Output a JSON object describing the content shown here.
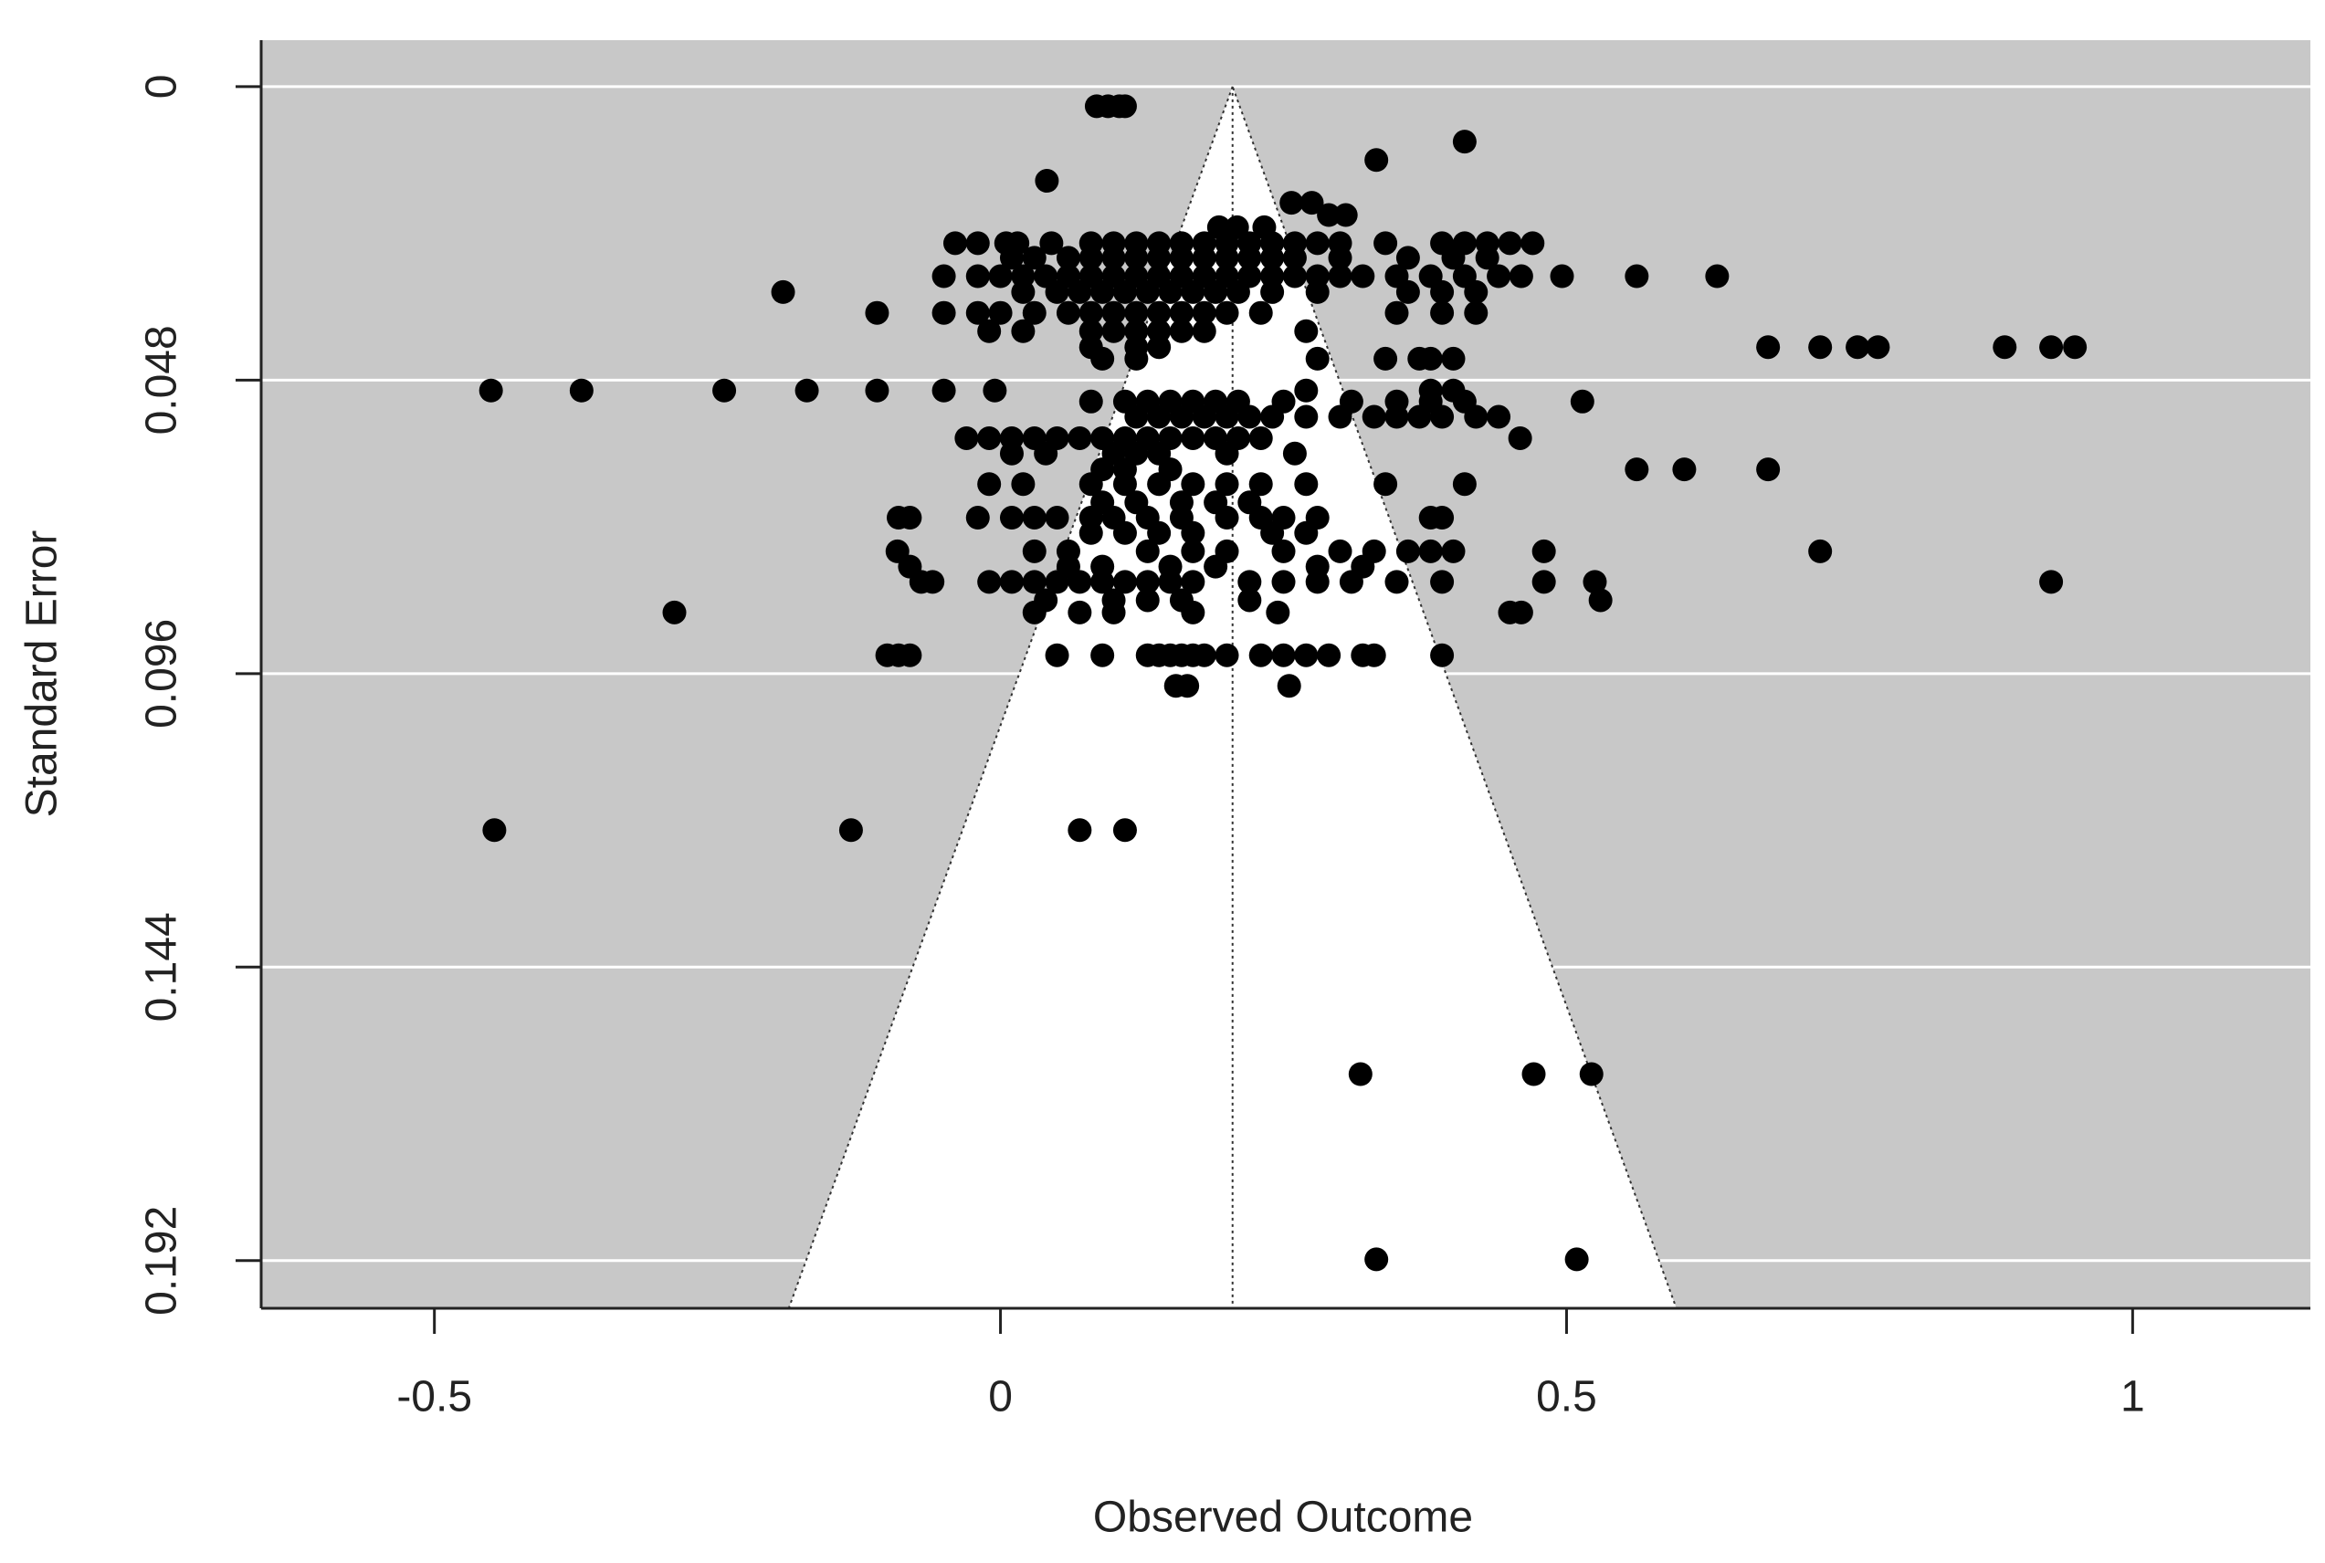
{
  "chart_data": {
    "type": "funnel-scatter",
    "xlabel": "Observed Outcome",
    "ylabel": "Standard Error",
    "xlim": [
      -0.653,
      1.157
    ],
    "ylim": [
      0.1998,
      -0.0076
    ],
    "xticks": [
      -0.5,
      0,
      0.5,
      1
    ],
    "yticks": [
      0,
      0.048,
      0.096,
      0.144,
      0.192
    ],
    "grid": true,
    "color": "#000000",
    "background": "#c8c8c8",
    "funnel_estimate": 0.205,
    "funnel_lower_limit": -0.187,
    "funnel_upper_limit": 0.597,
    "x": [
      0.085,
      0.095,
      0.105,
      0.11,
      0.41,
      0.332,
      0.041,
      0.257,
      0.275,
      0.29,
      0.305,
      0.193,
      0.209,
      0.233,
      -0.04,
      -0.02,
      0.005,
      0.015,
      0.045,
      0.08,
      0.1,
      0.12,
      0.14,
      0.16,
      0.18,
      0.2,
      0.22,
      0.24,
      0.26,
      0.28,
      0.3,
      0.34,
      0.39,
      0.41,
      0.43,
      0.45,
      0.47,
      0.01,
      0.03,
      0.06,
      0.08,
      0.1,
      0.12,
      0.14,
      0.16,
      0.18,
      0.2,
      0.22,
      0.24,
      0.26,
      0.3,
      0.36,
      0.4,
      0.43,
      -0.05,
      -0.02,
      0,
      0.02,
      0.04,
      0.06,
      0.08,
      0.1,
      0.12,
      0.14,
      0.16,
      0.18,
      0.2,
      0.22,
      0.24,
      0.26,
      0.28,
      0.3,
      0.32,
      0.35,
      0.38,
      0.41,
      0.44,
      0.46,
      0.496,
      0.562,
      0.633,
      -0.192,
      0.02,
      0.05,
      0.07,
      0.09,
      0.11,
      0.13,
      0.15,
      0.17,
      0.19,
      0.21,
      0.24,
      0.28,
      0.36,
      0.39,
      0.42,
      -0.109,
      -0.05,
      -0.02,
      0,
      0.03,
      0.06,
      0.08,
      0.1,
      0.12,
      0.14,
      0.16,
      0.18,
      0.2,
      0.23,
      0.35,
      0.39,
      0.42,
      -0.01,
      0.02,
      0.08,
      0.1,
      0.12,
      0.14,
      0.16,
      0.18,
      0.27,
      0.08,
      0.12,
      0.14,
      0.678,
      0.724,
      0.757,
      0.775,
      0.887,
      0.928,
      0.949,
      0.09,
      0.12,
      0.28,
      0.34,
      0.37,
      0.38,
      0.4,
      -0.45,
      -0.37,
      -0.244,
      -0.171,
      -0.109,
      -0.05,
      -0.005,
      0.27,
      0.38,
      0.4,
      0.08,
      0.11,
      0.13,
      0.15,
      0.17,
      0.19,
      0.21,
      0.25,
      0.31,
      0.35,
      0.38,
      0.41,
      0.514,
      0.12,
      0.14,
      0.16,
      0.18,
      0.2,
      0.22,
      0.24,
      0.27,
      0.3,
      0.33,
      0.35,
      0.37,
      0.39,
      0.42,
      0.44,
      -0.03,
      -0.01,
      0.01,
      0.03,
      0.05,
      0.07,
      0.09,
      0.11,
      0.13,
      0.15,
      0.17,
      0.19,
      0.21,
      0.23,
      0.459,
      0.01,
      0.04,
      0.1,
      0.12,
      0.14,
      0.2,
      0.26,
      0.09,
      0.11,
      0.15,
      0.562,
      0.604,
      0.678,
      -0.01,
      0.02,
      0.08,
      0.11,
      0.14,
      0.17,
      0.2,
      0.23,
      0.27,
      0.34,
      0.41,
      0.09,
      0.12,
      0.16,
      0.19,
      0.22,
      -0.09,
      -0.08,
      -0.02,
      0.01,
      0.03,
      0.05,
      0.08,
      0.1,
      0.13,
      0.16,
      0.2,
      0.23,
      0.25,
      0.28,
      0.38,
      0.39,
      0.08,
      0.11,
      0.14,
      0.17,
      0.24,
      0.27,
      -0.091,
      0.03,
      0.06,
      0.13,
      0.17,
      0.2,
      0.25,
      0.3,
      0.33,
      0.36,
      0.38,
      0.4,
      0.48,
      0.724,
      -0.08,
      0.06,
      0.09,
      0.15,
      0.19,
      0.28,
      0.32,
      -0.07,
      -0.06,
      -0.01,
      0.01,
      0.03,
      0.05,
      0.07,
      0.09,
      0.11,
      0.13,
      0.15,
      0.17,
      0.22,
      0.25,
      0.28,
      0.31,
      0.35,
      0.39,
      0.48,
      0.525,
      0.928,
      0.04,
      0.1,
      0.13,
      0.16,
      0.22,
      0.53,
      -0.288,
      0.03,
      0.07,
      0.1,
      0.17,
      0.245,
      0.45,
      0.46,
      -0.1,
      -0.09,
      -0.08,
      0.05,
      0.09,
      0.13,
      0.14,
      0.15,
      0.16,
      0.17,
      0.18,
      0.2,
      0.23,
      0.25,
      0.27,
      0.29,
      0.32,
      0.33,
      0.39,
      0.155,
      0.165,
      0.255,
      -0.447,
      -0.132,
      0.07,
      0.11,
      0.318,
      0.471,
      0.522,
      0.332,
      0.509
    ],
    "values": [
      0.0032,
      0.0032,
      0.0032,
      0.0032,
      0.009,
      0.012,
      0.0154,
      0.019,
      0.019,
      0.021,
      0.021,
      0.023,
      0.023,
      0.023,
      0.0256,
      0.0256,
      0.0256,
      0.0256,
      0.0256,
      0.0256,
      0.0256,
      0.0256,
      0.0256,
      0.0256,
      0.0256,
      0.0256,
      0.0256,
      0.0256,
      0.0256,
      0.0256,
      0.0256,
      0.0256,
      0.0256,
      0.0256,
      0.0256,
      0.0256,
      0.0256,
      0.028,
      0.028,
      0.028,
      0.028,
      0.028,
      0.028,
      0.028,
      0.028,
      0.028,
      0.028,
      0.028,
      0.028,
      0.028,
      0.028,
      0.028,
      0.028,
      0.028,
      0.031,
      0.031,
      0.031,
      0.031,
      0.031,
      0.031,
      0.031,
      0.031,
      0.031,
      0.031,
      0.031,
      0.031,
      0.031,
      0.031,
      0.031,
      0.031,
      0.031,
      0.031,
      0.031,
      0.031,
      0.031,
      0.031,
      0.031,
      0.031,
      0.031,
      0.031,
      0.031,
      0.0336,
      0.0336,
      0.0336,
      0.0336,
      0.0336,
      0.0336,
      0.0336,
      0.0336,
      0.0336,
      0.0336,
      0.0336,
      0.0336,
      0.0336,
      0.0336,
      0.0336,
      0.0336,
      0.037,
      0.037,
      0.037,
      0.037,
      0.037,
      0.037,
      0.037,
      0.037,
      0.037,
      0.037,
      0.037,
      0.037,
      0.037,
      0.037,
      0.037,
      0.037,
      0.037,
      0.04,
      0.04,
      0.04,
      0.04,
      0.04,
      0.04,
      0.04,
      0.04,
      0.04,
      0.0426,
      0.0426,
      0.0426,
      0.0426,
      0.0426,
      0.0426,
      0.0426,
      0.0426,
      0.0426,
      0.0426,
      0.0445,
      0.0445,
      0.0445,
      0.0445,
      0.0445,
      0.0445,
      0.0445,
      0.0497,
      0.0497,
      0.0497,
      0.0497,
      0.0497,
      0.0497,
      0.0497,
      0.0497,
      0.0497,
      0.0497,
      0.0515,
      0.0515,
      0.0515,
      0.0515,
      0.0515,
      0.0515,
      0.0515,
      0.0515,
      0.0515,
      0.0515,
      0.0515,
      0.0515,
      0.0515,
      0.054,
      0.054,
      0.054,
      0.054,
      0.054,
      0.054,
      0.054,
      0.054,
      0.054,
      0.054,
      0.054,
      0.054,
      0.054,
      0.054,
      0.054,
      0.0575,
      0.0575,
      0.0575,
      0.0575,
      0.0575,
      0.0575,
      0.0575,
      0.0575,
      0.0575,
      0.0575,
      0.0575,
      0.0575,
      0.0575,
      0.0575,
      0.0575,
      0.06,
      0.06,
      0.06,
      0.06,
      0.06,
      0.06,
      0.06,
      0.0626,
      0.0626,
      0.0626,
      0.0626,
      0.0626,
      0.0626,
      0.065,
      0.065,
      0.065,
      0.065,
      0.065,
      0.065,
      0.065,
      0.065,
      0.065,
      0.065,
      0.065,
      0.068,
      0.068,
      0.068,
      0.068,
      0.068,
      0.0705,
      0.0705,
      0.0705,
      0.0705,
      0.0705,
      0.0705,
      0.0705,
      0.0705,
      0.0705,
      0.0705,
      0.0705,
      0.0705,
      0.0705,
      0.0705,
      0.0705,
      0.0705,
      0.073,
      0.073,
      0.073,
      0.073,
      0.073,
      0.073,
      0.076,
      0.076,
      0.076,
      0.076,
      0.076,
      0.076,
      0.076,
      0.076,
      0.076,
      0.076,
      0.076,
      0.076,
      0.076,
      0.076,
      0.0785,
      0.0785,
      0.0785,
      0.0785,
      0.0785,
      0.0785,
      0.0785,
      0.081,
      0.081,
      0.081,
      0.081,
      0.081,
      0.081,
      0.081,
      0.081,
      0.081,
      0.081,
      0.081,
      0.081,
      0.081,
      0.081,
      0.081,
      0.081,
      0.081,
      0.081,
      0.081,
      0.081,
      0.081,
      0.084,
      0.084,
      0.084,
      0.084,
      0.084,
      0.084,
      0.086,
      0.086,
      0.086,
      0.086,
      0.086,
      0.086,
      0.086,
      0.086,
      0.093,
      0.093,
      0.093,
      0.093,
      0.093,
      0.093,
      0.093,
      0.093,
      0.093,
      0.093,
      0.093,
      0.093,
      0.093,
      0.093,
      0.093,
      0.093,
      0.093,
      0.093,
      0.093,
      0.098,
      0.098,
      0.098,
      0.1216,
      0.1216,
      0.1216,
      0.1216,
      0.1615,
      0.1615,
      0.1615,
      0.1918,
      0.1918
    ]
  }
}
